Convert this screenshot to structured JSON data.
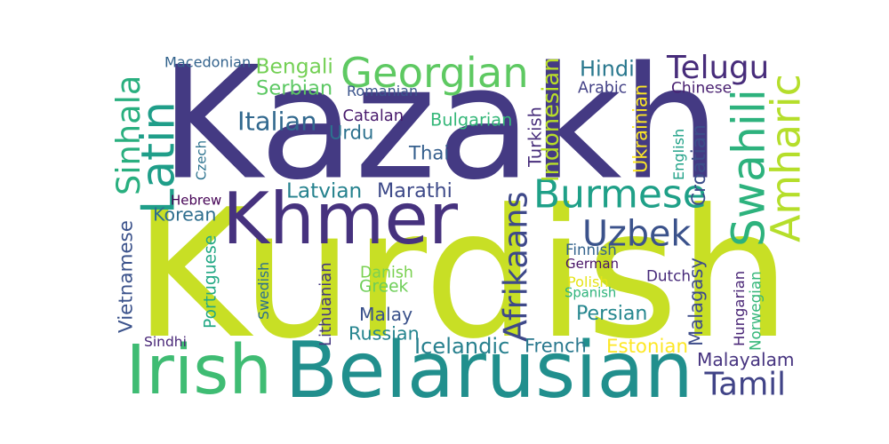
{
  "chart_data": {
    "type": "wordcloud",
    "words": [
      {
        "text": "Kurdish",
        "color": "#c8df25"
      },
      {
        "text": "Kazakh",
        "color": "#443a83"
      },
      {
        "text": "Belarusian",
        "color": "#218f8d"
      },
      {
        "text": "Khmer",
        "color": "#46327e"
      },
      {
        "text": "Irish",
        "color": "#3fbc73"
      },
      {
        "text": "Georgian",
        "color": "#5ec962"
      },
      {
        "text": "Burmese",
        "color": "#1fa088"
      },
      {
        "text": "Amharic",
        "color": "#b5de2b"
      },
      {
        "text": "Uzbek",
        "color": "#3b528b"
      },
      {
        "text": "Swahili",
        "color": "#2db27d"
      },
      {
        "text": "Afrikaans",
        "color": "#3e4989"
      },
      {
        "text": "Telugu",
        "color": "#472c7a"
      },
      {
        "text": "Latin",
        "color": "#1f9e89"
      },
      {
        "text": "Sinhala",
        "color": "#29af7f"
      },
      {
        "text": "Tamil",
        "color": "#404387"
      },
      {
        "text": "Malayalam",
        "color": "#46337f"
      },
      {
        "text": "Bengali",
        "color": "#74d055"
      },
      {
        "text": "Serbian",
        "color": "#5cc863"
      },
      {
        "text": "Italian",
        "color": "#31688e"
      },
      {
        "text": "Latvian",
        "color": "#26828e"
      },
      {
        "text": "Marathi",
        "color": "#3e4a89"
      },
      {
        "text": "Korean",
        "color": "#2e6e8e"
      },
      {
        "text": "Urdu",
        "color": "#2c718e"
      },
      {
        "text": "Thai",
        "color": "#355f8d"
      },
      {
        "text": "Hindi",
        "color": "#2a788e"
      },
      {
        "text": "Indonesian",
        "color": "#b8de29"
      },
      {
        "text": "Ukrainian",
        "color": "#fde725"
      },
      {
        "text": "Turkish",
        "color": "#472d7b"
      },
      {
        "text": "Croatian",
        "color": "#3d4e8a"
      },
      {
        "text": "Malagasy",
        "color": "#3e4c8a"
      },
      {
        "text": "Greek",
        "color": "#6ece58"
      },
      {
        "text": "Malay",
        "color": "#3b528b"
      },
      {
        "text": "Russian",
        "color": "#25848e"
      },
      {
        "text": "Persian",
        "color": "#24868e"
      },
      {
        "text": "French",
        "color": "#2a788e"
      },
      {
        "text": "Icelandic",
        "color": "#27808e"
      },
      {
        "text": "Estonian",
        "color": "#fde725"
      },
      {
        "text": "Hungarian",
        "color": "#482475"
      },
      {
        "text": "Norwegian",
        "color": "#35b779"
      },
      {
        "text": "Vietnamese",
        "color": "#3b528b"
      },
      {
        "text": "Portuguese",
        "color": "#22a884"
      },
      {
        "text": "Swedish",
        "color": "#2c718e"
      },
      {
        "text": "Lithuanian",
        "color": "#453781"
      },
      {
        "text": "Danish",
        "color": "#7ad151"
      },
      {
        "text": "Macedonian",
        "color": "#33638d"
      },
      {
        "text": "Romanian",
        "color": "#3a548c"
      },
      {
        "text": "Catalan",
        "color": "#481a6c"
      },
      {
        "text": "Bulgarian",
        "color": "#35b779"
      },
      {
        "text": "Arabic",
        "color": "#424086"
      },
      {
        "text": "Chinese",
        "color": "#481f70"
      },
      {
        "text": "English",
        "color": "#1fa187"
      },
      {
        "text": "Czech",
        "color": "#2c728e"
      },
      {
        "text": "Hebrew",
        "color": "#440154"
      },
      {
        "text": "Finnish",
        "color": "#33638d"
      },
      {
        "text": "German",
        "color": "#481467"
      },
      {
        "text": "Polish",
        "color": "#e5e419"
      },
      {
        "text": "Spanish",
        "color": "#2fb47c"
      },
      {
        "text": "Dutch",
        "color": "#472a7a"
      },
      {
        "text": "Sindhi",
        "color": "#482677"
      }
    ]
  }
}
